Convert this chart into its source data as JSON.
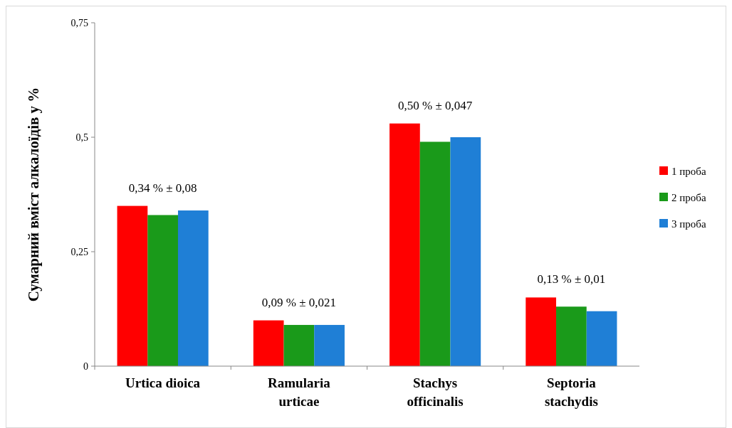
{
  "chart_data": {
    "type": "bar",
    "ylabel": "Сумарний вміст алкалоїдів у %",
    "categories": [
      "Urtica dioica",
      "Ramularia urticae",
      "Stachys officinalis",
      "Septoria stachydis"
    ],
    "series": [
      {
        "name": "1 проба",
        "color": "#ff0000",
        "values": [
          0.35,
          0.1,
          0.53,
          0.15
        ]
      },
      {
        "name": "2 проба",
        "color": "#1a9a1a",
        "values": [
          0.33,
          0.09,
          0.49,
          0.13
        ]
      },
      {
        "name": "3 проба",
        "color": "#1f7fd6",
        "values": [
          0.34,
          0.09,
          0.5,
          0.12
        ]
      }
    ],
    "ylim": [
      0,
      0.75
    ],
    "yticks": [
      0,
      {
        "value": 0.25,
        "label": "0,25"
      },
      {
        "value": 0.5,
        "label": "0,5"
      },
      {
        "value": 0.75,
        "label": "0,75"
      }
    ],
    "annotations": [
      "0,34 % ± 0,08",
      "0,09 % ± 0,021",
      "0,50 % ± 0,047",
      "0,13 % ± 0,01"
    ],
    "grid": false,
    "legend": "right"
  }
}
